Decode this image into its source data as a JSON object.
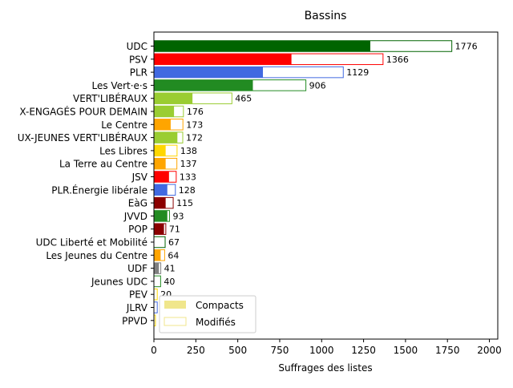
{
  "chart_data": {
    "type": "bar",
    "orientation": "horizontal",
    "stacked": "overlay",
    "title": "Bassins",
    "xlabel": "Suffrages des listes",
    "ylabel": "",
    "xlim": [
      0,
      2050
    ],
    "xticks": [
      "0",
      "250",
      "500",
      "750",
      "1000",
      "1250",
      "1500",
      "1750",
      "2000"
    ],
    "xtick_values": [
      0,
      250,
      500,
      750,
      1000,
      1250,
      1500,
      1750,
      2000
    ],
    "grid": false,
    "legend": {
      "placement": "lower-left",
      "entries": [
        {
          "label": "Compacts",
          "color": "#f0e68c",
          "style": "filled"
        },
        {
          "label": "Modifiés",
          "color": "#f0e68c",
          "style": "outline"
        }
      ]
    },
    "series": [
      {
        "name": "Compacts",
        "style": "filled",
        "values": [
          1290,
          820,
          650,
          590,
          230,
          120,
          100,
          140,
          70,
          70,
          90,
          80,
          70,
          80,
          60,
          0,
          40,
          30,
          0,
          0,
          0,
          0
        ]
      },
      {
        "name": "Modifiés",
        "style": "outline",
        "values": [
          1776,
          1366,
          1129,
          906,
          465,
          176,
          173,
          172,
          138,
          137,
          133,
          128,
          115,
          93,
          71,
          67,
          64,
          41,
          40,
          20,
          20,
          9
        ]
      }
    ],
    "categories": [
      "UDC",
      "PSV",
      "PLR",
      "Les Vert·e·s",
      "VERT'LIBÉRAUX",
      "X-ENGAGÉS POUR DEMAIN",
      "Le Centre",
      "UX-JEUNES VERT'LIBÉRAUX",
      "Les Libres",
      "La Terre au Centre",
      "JSV",
      "PLR.Énergie libérale",
      "EàG",
      "JVVD",
      "POP",
      "UDC Liberté et Mobilité",
      "Les Jeunes du Centre",
      "UDF",
      "Jeunes UDC",
      "PEV",
      "JLRV",
      "PPVD"
    ],
    "data_labels": [
      "1776",
      "1366",
      "1129",
      "906",
      "465",
      "176",
      "173",
      "172",
      "138",
      "137",
      "133",
      "128",
      "115",
      "93",
      "71",
      "67",
      "64",
      "41",
      "40",
      "20",
      "20",
      "9"
    ],
    "colors": [
      "#006400",
      "#ff0000",
      "#4169e1",
      "#228b22",
      "#9acd32",
      "#9acd32",
      "#ffa500",
      "#9acd32",
      "#ffd700",
      "#ffa500",
      "#ff0000",
      "#4169e1",
      "#8b0000",
      "#228b22",
      "#8b0000",
      "#006400",
      "#ffa500",
      "#808080",
      "#228b22",
      "#ffd700",
      "#4169e1",
      "#ffd700"
    ]
  }
}
